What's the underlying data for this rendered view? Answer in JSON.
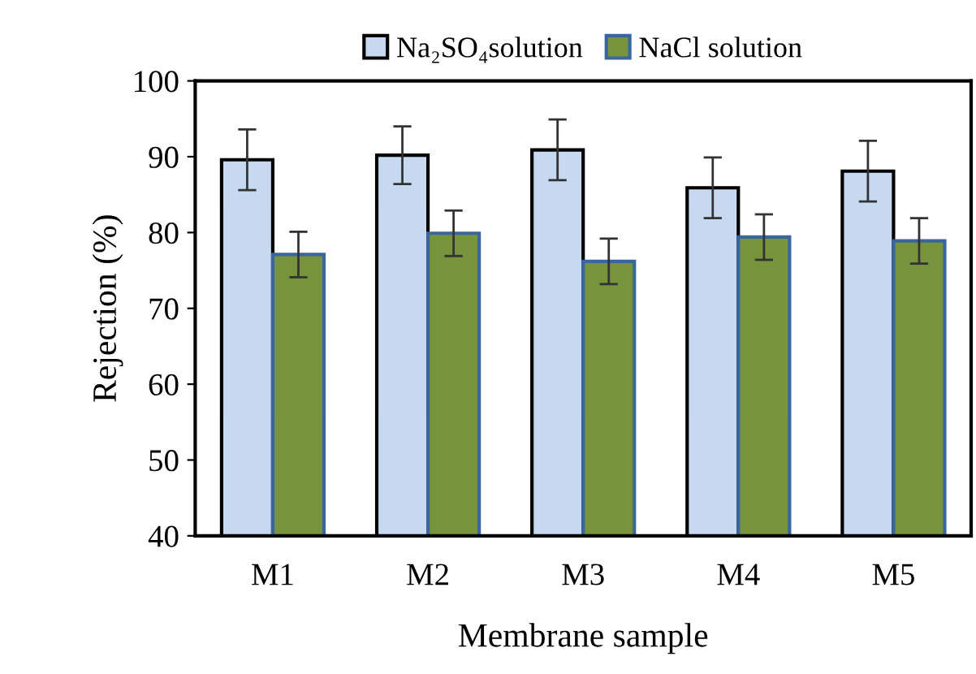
{
  "chart_data": {
    "type": "bar",
    "xlabel": "Membrane sample",
    "ylabel": "Rejection (%)",
    "categories": [
      "M1",
      "M2",
      "M3",
      "M4",
      "M5"
    ],
    "series": [
      {
        "name": "Na₂SO₄solution",
        "color": "#c6d9f1",
        "values": [
          89.6,
          90.2,
          90.9,
          85.9,
          88.1
        ],
        "errors": [
          4,
          3.8,
          4,
          4,
          4
        ]
      },
      {
        "name": "NaCl solution",
        "color": "#77933c",
        "values": [
          77.1,
          79.9,
          76.2,
          79.4,
          78.9
        ],
        "errors": [
          3,
          3,
          3,
          3,
          3
        ]
      }
    ],
    "ylim": [
      40,
      100
    ],
    "yticks": [
      40,
      50,
      60,
      70,
      80,
      90,
      100
    ],
    "grid": false,
    "legend": "top"
  }
}
